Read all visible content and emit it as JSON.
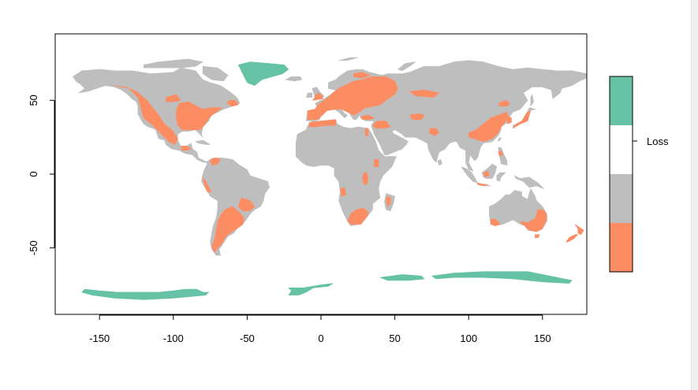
{
  "chart_data": {
    "type": "heatmap",
    "title": "",
    "xlabel": "",
    "ylabel": "",
    "xlim": [
      -180,
      180
    ],
    "ylim": [
      -95,
      95
    ],
    "x_ticks": [
      -150,
      -100,
      -50,
      0,
      50,
      100,
      150
    ],
    "y_ticks": [
      -50,
      0,
      50
    ],
    "legend": {
      "label": "Loss",
      "classes": [
        {
          "color": "#66c2a5",
          "meaning": "ice / no data"
        },
        {
          "color": "#ffffff",
          "meaning": "no land"
        },
        {
          "color": "#bebebe",
          "meaning": "land"
        },
        {
          "color": "#fc8d62",
          "meaning": "loss"
        }
      ]
    },
    "colors": {
      "ice": "#66c2a5",
      "land": "#bebebe",
      "loss": "#fc8d62"
    }
  }
}
